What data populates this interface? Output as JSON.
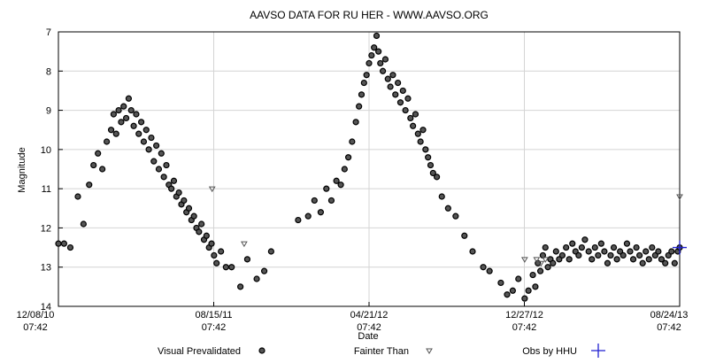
{
  "chart_data": {
    "type": "scatter",
    "title": "AAVSO DATA FOR RU HER - WWW.AAVSO.ORG",
    "xlabel": "Date",
    "ylabel": "Magnitude",
    "x_ticks": [
      {
        "date": "12/08/10",
        "time": "07:42"
      },
      {
        "date": "08/15/11",
        "time": "07:42"
      },
      {
        "date": "04/21/12",
        "time": "07:42"
      },
      {
        "date": "12/27/12",
        "time": "07:42"
      },
      {
        "date": "08/24/13",
        "time": "07:42"
      }
    ],
    "xlim": [
      "2010-12-08",
      "2013-08-24"
    ],
    "ylim": [
      14,
      7
    ],
    "y_ticks": [
      7,
      8,
      9,
      10,
      11,
      12,
      13,
      14
    ],
    "y_inverted": true,
    "grid": true,
    "legend_position": "bottom",
    "legend": [
      {
        "label": "Visual Prevalidated",
        "marker": "filled-circle"
      },
      {
        "label": "Fainter Than",
        "marker": "open-triangle-down"
      },
      {
        "label": "Obs by HHU",
        "marker": "plus",
        "color": "#1f1fd0"
      }
    ],
    "series": [
      {
        "name": "Visual Prevalidated",
        "marker": "filled-circle",
        "points": [
          [
            "2010-12-08",
            12.4
          ],
          [
            "2010-12-17",
            12.4
          ],
          [
            "2010-12-27",
            12.5
          ],
          [
            "2011-01-08",
            11.2
          ],
          [
            "2011-01-17",
            11.9
          ],
          [
            "2011-01-26",
            10.9
          ],
          [
            "2011-02-02",
            10.4
          ],
          [
            "2011-02-09",
            10.1
          ],
          [
            "2011-02-16",
            10.5
          ],
          [
            "2011-02-23",
            9.8
          ],
          [
            "2011-03-02",
            9.5
          ],
          [
            "2011-03-06",
            9.1
          ],
          [
            "2011-03-10",
            9.6
          ],
          [
            "2011-03-14",
            9.0
          ],
          [
            "2011-03-18",
            9.3
          ],
          [
            "2011-03-22",
            8.9
          ],
          [
            "2011-03-26",
            9.2
          ],
          [
            "2011-03-30",
            8.7
          ],
          [
            "2011-04-03",
            9.0
          ],
          [
            "2011-04-07",
            9.4
          ],
          [
            "2011-04-11",
            9.1
          ],
          [
            "2011-04-15",
            9.6
          ],
          [
            "2011-04-19",
            9.3
          ],
          [
            "2011-04-23",
            9.8
          ],
          [
            "2011-04-27",
            9.5
          ],
          [
            "2011-05-01",
            10.0
          ],
          [
            "2011-05-05",
            9.7
          ],
          [
            "2011-05-09",
            10.3
          ],
          [
            "2011-05-13",
            9.9
          ],
          [
            "2011-05-17",
            10.5
          ],
          [
            "2011-05-21",
            10.1
          ],
          [
            "2011-05-25",
            10.7
          ],
          [
            "2011-05-29",
            10.4
          ],
          [
            "2011-06-02",
            10.9
          ],
          [
            "2011-06-06",
            11.0
          ],
          [
            "2011-06-10",
            10.8
          ],
          [
            "2011-06-14",
            11.2
          ],
          [
            "2011-06-18",
            11.1
          ],
          [
            "2011-06-22",
            11.4
          ],
          [
            "2011-06-26",
            11.3
          ],
          [
            "2011-06-30",
            11.6
          ],
          [
            "2011-07-04",
            11.5
          ],
          [
            "2011-07-08",
            11.8
          ],
          [
            "2011-07-12",
            11.7
          ],
          [
            "2011-07-16",
            12.0
          ],
          [
            "2011-07-20",
            12.1
          ],
          [
            "2011-07-24",
            11.9
          ],
          [
            "2011-07-28",
            12.3
          ],
          [
            "2011-08-01",
            12.2
          ],
          [
            "2011-08-05",
            12.5
          ],
          [
            "2011-08-09",
            12.4
          ],
          [
            "2011-08-13",
            12.7
          ],
          [
            "2011-08-17",
            12.9
          ],
          [
            "2011-08-24",
            12.6
          ],
          [
            "2011-09-01",
            13.0
          ],
          [
            "2011-09-10",
            13.0
          ],
          [
            "2011-09-24",
            13.5
          ],
          [
            "2011-10-05",
            12.8
          ],
          [
            "2011-10-20",
            13.3
          ],
          [
            "2011-11-01",
            13.1
          ],
          [
            "2011-11-12",
            12.6
          ],
          [
            "2011-12-25",
            11.8
          ],
          [
            "2012-01-10",
            11.7
          ],
          [
            "2012-01-20",
            11.3
          ],
          [
            "2012-01-30",
            11.6
          ],
          [
            "2012-02-08",
            11.0
          ],
          [
            "2012-02-16",
            11.3
          ],
          [
            "2012-02-24",
            10.8
          ],
          [
            "2012-03-02",
            10.9
          ],
          [
            "2012-03-08",
            10.5
          ],
          [
            "2012-03-14",
            10.2
          ],
          [
            "2012-03-20",
            9.8
          ],
          [
            "2012-03-26",
            9.3
          ],
          [
            "2012-03-31",
            8.9
          ],
          [
            "2012-04-04",
            8.6
          ],
          [
            "2012-04-08",
            8.3
          ],
          [
            "2012-04-12",
            8.1
          ],
          [
            "2012-04-16",
            7.8
          ],
          [
            "2012-04-20",
            7.6
          ],
          [
            "2012-04-24",
            7.4
          ],
          [
            "2012-04-28",
            7.1
          ],
          [
            "2012-05-01",
            7.5
          ],
          [
            "2012-05-04",
            7.8
          ],
          [
            "2012-05-08",
            8.0
          ],
          [
            "2012-05-12",
            7.7
          ],
          [
            "2012-05-16",
            8.2
          ],
          [
            "2012-05-20",
            8.4
          ],
          [
            "2012-05-24",
            8.1
          ],
          [
            "2012-05-28",
            8.6
          ],
          [
            "2012-06-01",
            8.3
          ],
          [
            "2012-06-05",
            8.8
          ],
          [
            "2012-06-09",
            8.5
          ],
          [
            "2012-06-13",
            9.0
          ],
          [
            "2012-06-17",
            8.7
          ],
          [
            "2012-06-21",
            9.2
          ],
          [
            "2012-06-25",
            9.4
          ],
          [
            "2012-06-29",
            9.1
          ],
          [
            "2012-07-03",
            9.6
          ],
          [
            "2012-07-07",
            9.8
          ],
          [
            "2012-07-11",
            9.5
          ],
          [
            "2012-07-15",
            10.0
          ],
          [
            "2012-07-19",
            10.2
          ],
          [
            "2012-07-23",
            10.4
          ],
          [
            "2012-07-27",
            10.6
          ],
          [
            "2012-08-02",
            10.7
          ],
          [
            "2012-08-10",
            11.2
          ],
          [
            "2012-08-20",
            11.5
          ],
          [
            "2012-09-01",
            11.7
          ],
          [
            "2012-09-15",
            12.2
          ],
          [
            "2012-09-28",
            12.6
          ],
          [
            "2012-10-15",
            13.0
          ],
          [
            "2012-10-25",
            13.1
          ],
          [
            "2012-11-12",
            13.4
          ],
          [
            "2012-11-22",
            13.7
          ],
          [
            "2012-12-01",
            13.6
          ],
          [
            "2012-12-10",
            13.3
          ],
          [
            "2012-12-20",
            13.8
          ],
          [
            "2012-12-26",
            13.6
          ],
          [
            "2013-01-02",
            13.2
          ],
          [
            "2013-01-06",
            13.5
          ],
          [
            "2013-01-10",
            12.9
          ],
          [
            "2013-01-14",
            13.1
          ],
          [
            "2013-01-18",
            12.7
          ],
          [
            "2013-01-22",
            12.5
          ],
          [
            "2013-01-26",
            13.0
          ],
          [
            "2013-01-30",
            12.8
          ],
          [
            "2013-02-03",
            12.9
          ],
          [
            "2013-02-08",
            12.6
          ],
          [
            "2013-02-13",
            12.8
          ],
          [
            "2013-02-18",
            12.7
          ],
          [
            "2013-02-24",
            12.5
          ],
          [
            "2013-03-01",
            12.8
          ],
          [
            "2013-03-06",
            12.4
          ],
          [
            "2013-03-11",
            12.6
          ],
          [
            "2013-03-16",
            12.7
          ],
          [
            "2013-03-21",
            12.5
          ],
          [
            "2013-03-26",
            12.3
          ],
          [
            "2013-04-01",
            12.6
          ],
          [
            "2013-04-06",
            12.8
          ],
          [
            "2013-04-11",
            12.5
          ],
          [
            "2013-04-16",
            12.7
          ],
          [
            "2013-04-21",
            12.4
          ],
          [
            "2013-04-26",
            12.6
          ],
          [
            "2013-05-01",
            12.9
          ],
          [
            "2013-05-06",
            12.7
          ],
          [
            "2013-05-11",
            12.5
          ],
          [
            "2013-05-16",
            12.8
          ],
          [
            "2013-05-21",
            12.6
          ],
          [
            "2013-05-26",
            12.7
          ],
          [
            "2013-06-01",
            12.4
          ],
          [
            "2013-06-06",
            12.6
          ],
          [
            "2013-06-11",
            12.8
          ],
          [
            "2013-06-16",
            12.5
          ],
          [
            "2013-06-21",
            12.7
          ],
          [
            "2013-06-26",
            12.9
          ],
          [
            "2013-07-01",
            12.6
          ],
          [
            "2013-07-06",
            12.8
          ],
          [
            "2013-07-11",
            12.5
          ],
          [
            "2013-07-16",
            12.7
          ],
          [
            "2013-07-21",
            12.6
          ],
          [
            "2013-07-26",
            12.8
          ],
          [
            "2013-08-01",
            12.9
          ],
          [
            "2013-08-06",
            12.7
          ],
          [
            "2013-08-11",
            12.6
          ],
          [
            "2013-08-16",
            12.9
          ],
          [
            "2013-08-21",
            12.6
          ],
          [
            "2013-08-26",
            12.5
          ]
        ]
      },
      {
        "name": "Fainter Than",
        "marker": "open-triangle-down",
        "points": [
          [
            "2011-08-10",
            11.0
          ],
          [
            "2011-09-30",
            12.4
          ],
          [
            "2012-12-20",
            12.8
          ],
          [
            "2013-01-08",
            12.8
          ],
          [
            "2013-01-15",
            12.9
          ],
          [
            "2013-01-22",
            12.8
          ],
          [
            "2013-08-25",
            11.2
          ]
        ]
      },
      {
        "name": "Obs by HHU",
        "marker": "plus",
        "color": "#1f1fd0",
        "points": [
          [
            "2013-08-28",
            12.5
          ]
        ]
      }
    ]
  }
}
